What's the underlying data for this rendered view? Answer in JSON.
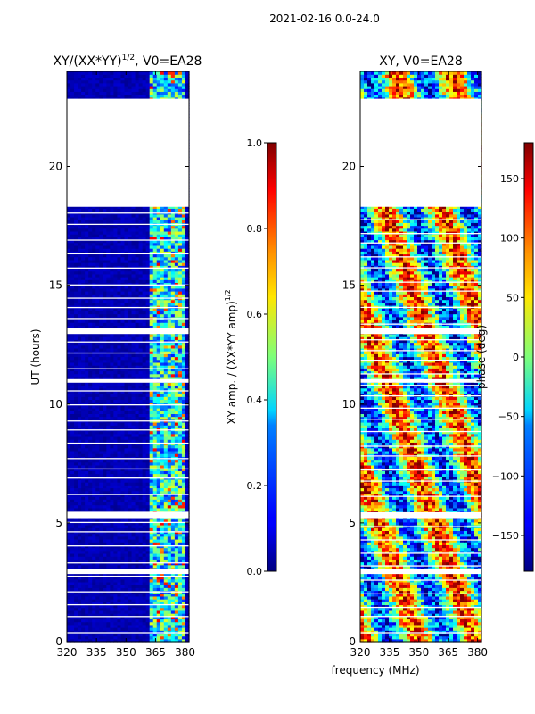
{
  "figure": {
    "suptitle": "2021-02-16 0.0-24.0",
    "common_xlabel": "frequency (MHz)"
  },
  "colormap": "jet",
  "chart_data": [
    {
      "type": "heatmap",
      "title_main": "XY/(XX*YY)",
      "title_sup": "1/2",
      "title_rest": ", V0=EA28",
      "xlabel": "",
      "ylabel": "UT (hours)",
      "xlim": [
        320,
        382
      ],
      "ylim": [
        0,
        24
      ],
      "xticks": [
        "320",
        "335",
        "350",
        "365",
        "380"
      ],
      "xtick_values": [
        320,
        335,
        350,
        365,
        380
      ],
      "yticks": [
        "0",
        "5",
        "10",
        "15",
        "20"
      ],
      "ytick_values": [
        0,
        5,
        10,
        15,
        20
      ],
      "data_gaps_hours": [
        [
          18.3,
          22.85
        ],
        [
          12.95,
          13.2
        ],
        [
          10.9,
          11.05
        ],
        [
          5.2,
          5.45
        ],
        [
          2.85,
          3.05
        ]
      ],
      "colorbar": {
        "label_main": "XY amp. / (XX*YY amp)",
        "label_sup": "1/2",
        "range": [
          0.0,
          1.0
        ],
        "ticks": [
          "0.0",
          "0.2",
          "0.4",
          "0.6",
          "0.8",
          "1.0"
        ],
        "tick_values": [
          0.0,
          0.2,
          0.4,
          0.6,
          0.8,
          1.0
        ]
      }
    },
    {
      "type": "heatmap",
      "title": "XY, V0=EA28",
      "xlabel": "frequency (MHz)",
      "ylabel": "",
      "xlim": [
        320,
        382
      ],
      "ylim": [
        0,
        24
      ],
      "xticks": [
        "320",
        "335",
        "350",
        "365",
        "380"
      ],
      "xtick_values": [
        320,
        335,
        350,
        365,
        380
      ],
      "yticks": [
        "0",
        "5",
        "10",
        "15",
        "20"
      ],
      "ytick_values": [
        0,
        5,
        10,
        15,
        20
      ],
      "data_gaps_hours": [
        [
          18.3,
          22.85
        ],
        [
          12.95,
          13.2
        ],
        [
          10.9,
          11.05
        ],
        [
          5.2,
          5.45
        ],
        [
          2.85,
          3.05
        ]
      ],
      "colorbar": {
        "label": "phase (deg)",
        "range": [
          -180,
          180
        ],
        "ticks": [
          "−150",
          "−100",
          "−50",
          "0",
          "50",
          "100",
          "150"
        ],
        "tick_values": [
          -150,
          -100,
          -50,
          0,
          50,
          100,
          150
        ]
      }
    }
  ]
}
